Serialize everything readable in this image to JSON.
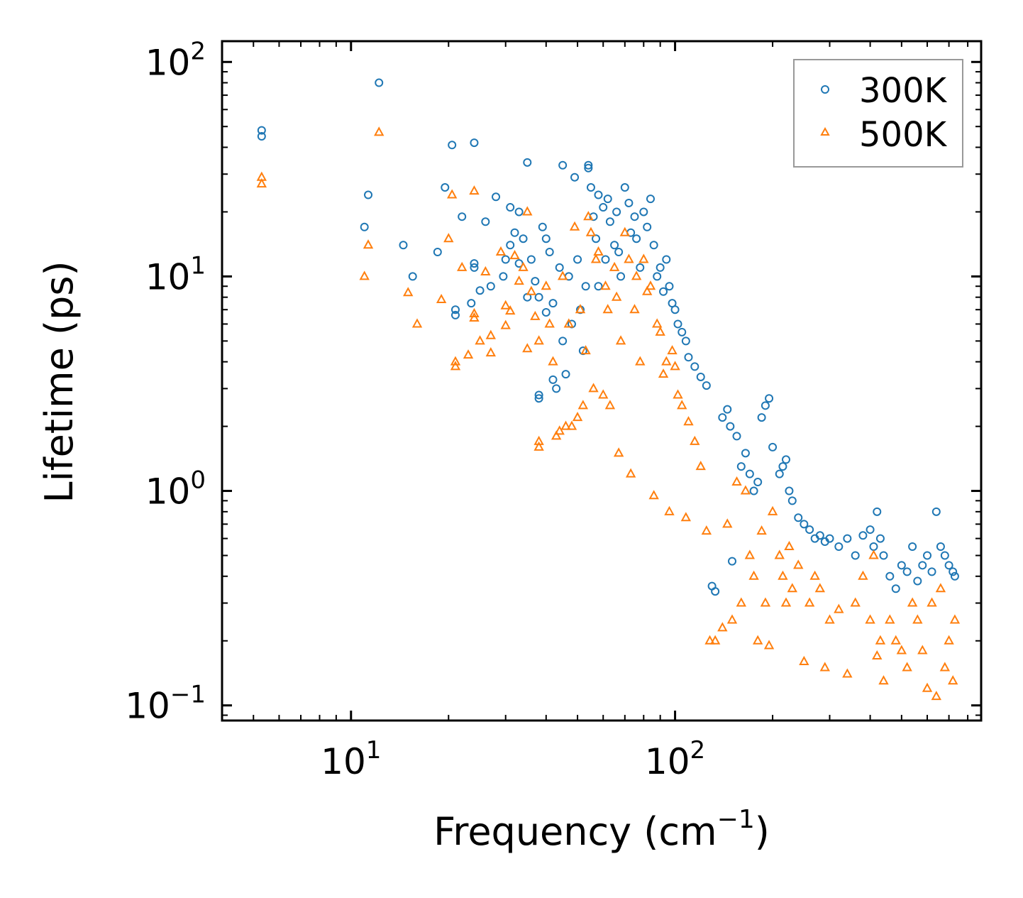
{
  "chart_data": {
    "type": "scatter",
    "xscale": "log",
    "yscale": "log",
    "xlabel": "Frequency (cm",
    "xlabel_superscript": "−1",
    "xlabel_suffix": ")",
    "ylabel": "Lifetime (ps)",
    "xlim": [
      4.0,
      880
    ],
    "ylim": [
      0.085,
      125
    ],
    "x_ticks": [
      {
        "value": 10,
        "base": "10",
        "exp": "1"
      },
      {
        "value": 100,
        "base": "10",
        "exp": "2"
      }
    ],
    "y_ticks": [
      {
        "value": 0.1,
        "base": "10",
        "exp": "−1"
      },
      {
        "value": 1,
        "base": "10",
        "exp": "0"
      },
      {
        "value": 10,
        "base": "10",
        "exp": "1"
      },
      {
        "value": 100,
        "base": "10",
        "exp": "2"
      }
    ],
    "legend_position": "top-right",
    "series": [
      {
        "name": "300K",
        "marker": "circle",
        "color": "#1f77b4",
        "points": [
          [
            5.3,
            48
          ],
          [
            5.3,
            45
          ],
          [
            12.2,
            80
          ],
          [
            11.3,
            24
          ],
          [
            11,
            17
          ],
          [
            14.5,
            14
          ],
          [
            15.5,
            10
          ],
          [
            18.5,
            13
          ],
          [
            19.5,
            26
          ],
          [
            20.5,
            41
          ],
          [
            21,
            7
          ],
          [
            21,
            6.6
          ],
          [
            22,
            19
          ],
          [
            23.5,
            7.5
          ],
          [
            24,
            42
          ],
          [
            24,
            11.5
          ],
          [
            24,
            11
          ],
          [
            25,
            8.6
          ],
          [
            26,
            18
          ],
          [
            27,
            9
          ],
          [
            28,
            23.5
          ],
          [
            29.5,
            10
          ],
          [
            30,
            12
          ],
          [
            31,
            21
          ],
          [
            31,
            14
          ],
          [
            32,
            16
          ],
          [
            33,
            20
          ],
          [
            33,
            11.5
          ],
          [
            34,
            15
          ],
          [
            35,
            34
          ],
          [
            35,
            8
          ],
          [
            36,
            12
          ],
          [
            37,
            9.5
          ],
          [
            38,
            8
          ],
          [
            38,
            2.8
          ],
          [
            38,
            2.7
          ],
          [
            39,
            17
          ],
          [
            40,
            15
          ],
          [
            40,
            6.8
          ],
          [
            41,
            13
          ],
          [
            42,
            7.5
          ],
          [
            42,
            3.3
          ],
          [
            43,
            3.0
          ],
          [
            44,
            11
          ],
          [
            45,
            33
          ],
          [
            45,
            5
          ],
          [
            46,
            3.5
          ],
          [
            47,
            10
          ],
          [
            48,
            6
          ],
          [
            49,
            29
          ],
          [
            50,
            12
          ],
          [
            51,
            7
          ],
          [
            52,
            4.5
          ],
          [
            53,
            9
          ],
          [
            54,
            33
          ],
          [
            54,
            32
          ],
          [
            55,
            26
          ],
          [
            56,
            19
          ],
          [
            57,
            15
          ],
          [
            58,
            24
          ],
          [
            58,
            9
          ],
          [
            60,
            21
          ],
          [
            61,
            12
          ],
          [
            62,
            23
          ],
          [
            63,
            18
          ],
          [
            65,
            14
          ],
          [
            66,
            20
          ],
          [
            67,
            13
          ],
          [
            68,
            10
          ],
          [
            70,
            26
          ],
          [
            72,
            22
          ],
          [
            73,
            16
          ],
          [
            75,
            19
          ],
          [
            76,
            15
          ],
          [
            78,
            11
          ],
          [
            80,
            20
          ],
          [
            82,
            17
          ],
          [
            84,
            23
          ],
          [
            86,
            14
          ],
          [
            88,
            10
          ],
          [
            90,
            11
          ],
          [
            92,
            8.5
          ],
          [
            94,
            12
          ],
          [
            96,
            9
          ],
          [
            98,
            7.5
          ],
          [
            100,
            7
          ],
          [
            102,
            6
          ],
          [
            105,
            5.5
          ],
          [
            108,
            5
          ],
          [
            110,
            4.2
          ],
          [
            115,
            3.8
          ],
          [
            120,
            3.4
          ],
          [
            125,
            3.1
          ],
          [
            130,
            0.36
          ],
          [
            133,
            0.34
          ],
          [
            140,
            2.2
          ],
          [
            145,
            2.4
          ],
          [
            148,
            2.0
          ],
          [
            150,
            0.47
          ],
          [
            155,
            1.8
          ],
          [
            160,
            1.3
          ],
          [
            165,
            1.5
          ],
          [
            170,
            1.2
          ],
          [
            175,
            1.0
          ],
          [
            180,
            1.1
          ],
          [
            185,
            2.2
          ],
          [
            190,
            2.5
          ],
          [
            195,
            2.7
          ],
          [
            200,
            1.6
          ],
          [
            210,
            1.2
          ],
          [
            215,
            1.3
          ],
          [
            220,
            1.4
          ],
          [
            225,
            1.0
          ],
          [
            230,
            0.9
          ],
          [
            240,
            0.75
          ],
          [
            250,
            0.7
          ],
          [
            260,
            0.66
          ],
          [
            270,
            0.6
          ],
          [
            280,
            0.62
          ],
          [
            290,
            0.58
          ],
          [
            300,
            0.6
          ],
          [
            320,
            0.55
          ],
          [
            340,
            0.6
          ],
          [
            360,
            0.5
          ],
          [
            380,
            0.62
          ],
          [
            400,
            0.66
          ],
          [
            410,
            0.55
          ],
          [
            420,
            0.8
          ],
          [
            430,
            0.6
          ],
          [
            440,
            0.5
          ],
          [
            460,
            0.4
          ],
          [
            480,
            0.35
          ],
          [
            500,
            0.45
          ],
          [
            520,
            0.42
          ],
          [
            540,
            0.55
          ],
          [
            560,
            0.38
          ],
          [
            580,
            0.45
          ],
          [
            600,
            0.5
          ],
          [
            620,
            0.42
          ],
          [
            640,
            0.8
          ],
          [
            660,
            0.55
          ],
          [
            680,
            0.5
          ],
          [
            700,
            0.45
          ],
          [
            720,
            0.42
          ],
          [
            730,
            0.4
          ]
        ]
      },
      {
        "name": "500K",
        "marker": "triangle",
        "color": "#ff7f0e",
        "points": [
          [
            5.3,
            29
          ],
          [
            5.3,
            27
          ],
          [
            12.2,
            47
          ],
          [
            11.3,
            14
          ],
          [
            11,
            10
          ],
          [
            15,
            8.4
          ],
          [
            16,
            6
          ],
          [
            19,
            7.8
          ],
          [
            20,
            15
          ],
          [
            20.5,
            24
          ],
          [
            21,
            4
          ],
          [
            21,
            3.8
          ],
          [
            22,
            11
          ],
          [
            23,
            4.3
          ],
          [
            24,
            25
          ],
          [
            24,
            6.7
          ],
          [
            24,
            6.4
          ],
          [
            25,
            5
          ],
          [
            26,
            10.5
          ],
          [
            27,
            5.3
          ],
          [
            27,
            4.4
          ],
          [
            29,
            13
          ],
          [
            30,
            7.3
          ],
          [
            30,
            5.9
          ],
          [
            31,
            6.9
          ],
          [
            32,
            12.5
          ],
          [
            33,
            9.5
          ],
          [
            34,
            11
          ],
          [
            35,
            20
          ],
          [
            35,
            4.6
          ],
          [
            36,
            8.5
          ],
          [
            37,
            6.5
          ],
          [
            38,
            5
          ],
          [
            38,
            1.7
          ],
          [
            38,
            1.6
          ],
          [
            40,
            9
          ],
          [
            41,
            6
          ],
          [
            42,
            4
          ],
          [
            43,
            1.8
          ],
          [
            44,
            1.9
          ],
          [
            45,
            10
          ],
          [
            46,
            2
          ],
          [
            47,
            6
          ],
          [
            48,
            2.0
          ],
          [
            49,
            17
          ],
          [
            50,
            2.2
          ],
          [
            51,
            7
          ],
          [
            52,
            2.5
          ],
          [
            53,
            4.5
          ],
          [
            54,
            19
          ],
          [
            55,
            16
          ],
          [
            56,
            3
          ],
          [
            57,
            12
          ],
          [
            58,
            13
          ],
          [
            60,
            2.8
          ],
          [
            61,
            9
          ],
          [
            62,
            7
          ],
          [
            63,
            2.5
          ],
          [
            65,
            11
          ],
          [
            66,
            8
          ],
          [
            67,
            1.5
          ],
          [
            68,
            5
          ],
          [
            70,
            16
          ],
          [
            72,
            12
          ],
          [
            73,
            1.2
          ],
          [
            75,
            7
          ],
          [
            76,
            10
          ],
          [
            78,
            4
          ],
          [
            80,
            12
          ],
          [
            82,
            8.5
          ],
          [
            84,
            9
          ],
          [
            86,
            0.95
          ],
          [
            88,
            6
          ],
          [
            90,
            5.5
          ],
          [
            92,
            3.5
          ],
          [
            94,
            4
          ],
          [
            96,
            0.8
          ],
          [
            98,
            4.5
          ],
          [
            100,
            3.8
          ],
          [
            102,
            2.8
          ],
          [
            105,
            2.5
          ],
          [
            108,
            0.75
          ],
          [
            110,
            2.1
          ],
          [
            115,
            1.7
          ],
          [
            120,
            1.3
          ],
          [
            125,
            0.65
          ],
          [
            128,
            0.2
          ],
          [
            133,
            0.2
          ],
          [
            140,
            0.23
          ],
          [
            145,
            0.7
          ],
          [
            150,
            0.25
          ],
          [
            155,
            1.1
          ],
          [
            160,
            0.3
          ],
          [
            165,
            1.0
          ],
          [
            170,
            0.5
          ],
          [
            175,
            0.4
          ],
          [
            180,
            0.2
          ],
          [
            185,
            0.65
          ],
          [
            190,
            0.3
          ],
          [
            195,
            0.19
          ],
          [
            200,
            0.8
          ],
          [
            210,
            0.5
          ],
          [
            215,
            0.4
          ],
          [
            220,
            0.3
          ],
          [
            225,
            0.55
          ],
          [
            230,
            0.35
          ],
          [
            240,
            0.45
          ],
          [
            250,
            0.16
          ],
          [
            260,
            0.3
          ],
          [
            270,
            0.4
          ],
          [
            280,
            0.35
          ],
          [
            290,
            0.15
          ],
          [
            300,
            0.25
          ],
          [
            320,
            0.28
          ],
          [
            340,
            0.14
          ],
          [
            360,
            0.3
          ],
          [
            380,
            0.4
          ],
          [
            400,
            0.25
          ],
          [
            410,
            0.5
          ],
          [
            420,
            0.17
          ],
          [
            430,
            0.2
          ],
          [
            440,
            0.13
          ],
          [
            460,
            0.25
          ],
          [
            480,
            0.2
          ],
          [
            500,
            0.18
          ],
          [
            520,
            0.15
          ],
          [
            540,
            0.3
          ],
          [
            560,
            0.25
          ],
          [
            580,
            0.18
          ],
          [
            600,
            0.12
          ],
          [
            620,
            0.3
          ],
          [
            640,
            0.11
          ],
          [
            660,
            0.35
          ],
          [
            680,
            0.15
          ],
          [
            700,
            0.2
          ],
          [
            720,
            0.13
          ],
          [
            730,
            0.25
          ]
        ]
      }
    ]
  }
}
